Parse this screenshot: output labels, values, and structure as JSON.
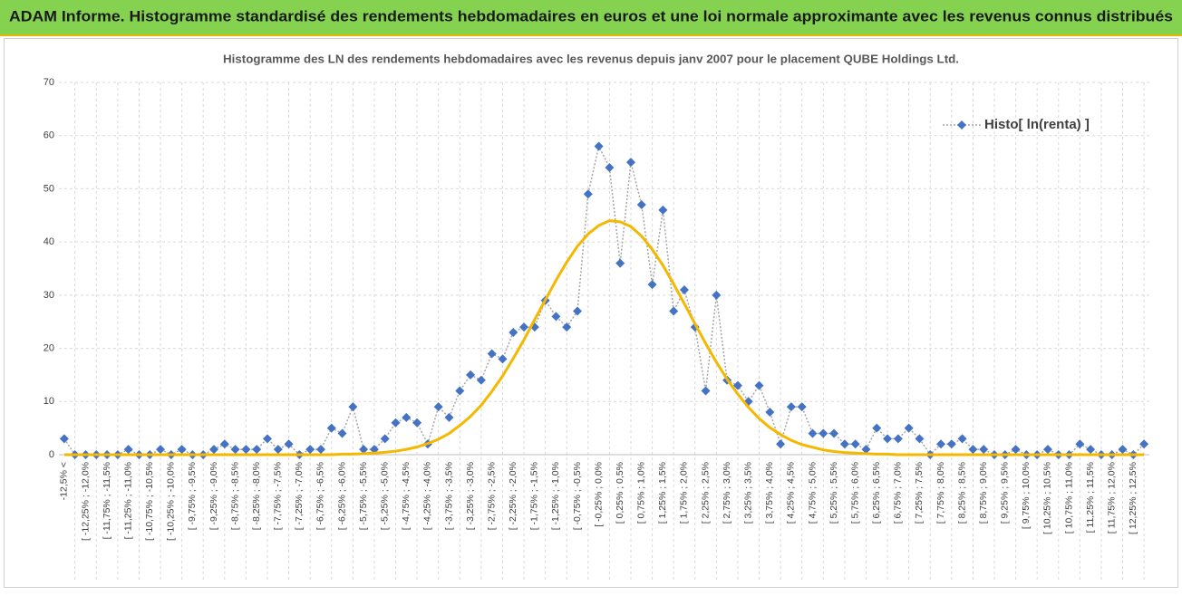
{
  "header": {
    "title": "ADAM Informe. Histogramme standardisé des rendements hebdomadaires en euros et une loi normale approximante avec les revenus connus distribués"
  },
  "chart_data": {
    "type": "line",
    "title": "Histogramme des LN des rendements hebdomadaires avec les revenus depuis janv 2007 pour le placement QUBE Holdings Ltd.",
    "categories": [
      "-12,5% <",
      null,
      "[ -12,25% ; -12,0%",
      null,
      "[ -11,75% ; -11,5%",
      null,
      "[ -11,25% ; -11,0%",
      null,
      "[ -10,75% ; -10,5%",
      null,
      "[ -10,25% ; -10,0%",
      null,
      "[ -9,75% ; -9,5%",
      null,
      "[ -9,25% ; -9,0%",
      null,
      "[ -8,75% ; -8,5%",
      null,
      "[ -8,25% ; -8,0%",
      null,
      "[ -7,75% ; -7,5%",
      null,
      "[ -7,25% ; -7,0%",
      null,
      "[ -6,75% ; -6,5%",
      null,
      "[ -6,25% ; -6,0%",
      null,
      "[ -5,75% ; -5,5%",
      null,
      "[ -5,25% ; -5,0%",
      null,
      "[ -4,75% ; -4,5%",
      null,
      "[ -4,25% ; -4,0%",
      null,
      "[ -3,75% ; -3,5%",
      null,
      "[ -3,25% ; -3,0%",
      null,
      "[ -2,75% ; -2,5%",
      null,
      "[ -2,25% ; -2,0%",
      null,
      "[ -1,75% ; -1,5%",
      null,
      "[ -1,25% ; -1,0%",
      null,
      "[ -0,75% ; -0,5%",
      null,
      "[ -0,25% ; 0,0%",
      null,
      "[ 0,25% ; 0,5%",
      null,
      "[ 0,75% ; 1,0%",
      null,
      "[ 1,25% ; 1,5%",
      null,
      "[ 1,75% ; 2,0%",
      null,
      "[ 2,25% ; 2,5%",
      null,
      "[ 2,75% ; 3,0%",
      null,
      "[ 3,25% ; 3,5%",
      null,
      "[ 3,75% ; 4,0%",
      null,
      "[ 4,25% ; 4,5%",
      null,
      "[ 4,75% ; 5,0%",
      null,
      "[ 5,25% ; 5,5%",
      null,
      "[ 5,75% ; 6,0%",
      null,
      "[ 6,25% ; 6,5%",
      null,
      "[ 6,75% ; 7,0%",
      null,
      "[ 7,25% ; 7,5%",
      null,
      "[ 7,75% ; 8,0%",
      null,
      "[ 8,25% ; 8,5%",
      null,
      "[ 8,75% ; 9,0%",
      null,
      "[ 9,25% ; 9,5%",
      null,
      "[ 9,75% ; 10,0%",
      null,
      "[ 10,25% ; 10,5%",
      null,
      "[ 10,75% ; 11,0%",
      null,
      "[ 11,25% ; 11,5%",
      null,
      "[ 11,75% ; 12,0%",
      null,
      "[ 12,25% ; 12,5%",
      null
    ],
    "series": [
      {
        "name": "Histo[ ln(renta) ]",
        "color": "#4472c4",
        "line_color": "#a6a6a6",
        "line_style": "dotted",
        "marker": "diamond",
        "values": [
          3,
          0,
          0,
          0,
          0,
          0,
          1,
          0,
          0,
          1,
          0,
          1,
          0,
          0,
          1,
          2,
          1,
          1,
          1,
          3,
          1,
          2,
          0,
          1,
          1,
          5,
          4,
          9,
          1,
          1,
          3,
          6,
          7,
          6,
          2,
          9,
          7,
          12,
          15,
          14,
          19,
          18,
          23,
          24,
          24,
          29,
          26,
          24,
          27,
          49,
          58,
          54,
          36,
          55,
          47,
          32,
          46,
          27,
          31,
          24,
          12,
          30,
          14,
          13,
          10,
          13,
          8,
          2,
          9,
          9,
          4,
          4,
          4,
          2,
          2,
          1,
          5,
          3,
          3,
          5,
          3,
          0,
          2,
          2,
          3,
          1,
          1,
          0,
          0,
          1,
          0,
          0,
          1,
          0,
          0,
          2,
          1,
          0,
          0,
          1,
          0,
          2
        ]
      },
      {
        "color": "#f5b800",
        "line_style": "solid",
        "marker": "none",
        "values": [
          0,
          0,
          0,
          0,
          0,
          0,
          0,
          0,
          0,
          0,
          0,
          0,
          0,
          0,
          0,
          0,
          0,
          0,
          0,
          0,
          0,
          0,
          0,
          0,
          0,
          0,
          0.1,
          0.1,
          0.2,
          0.3,
          0.44,
          0.67,
          1.0,
          1.45,
          2.1,
          2.9,
          4.0,
          5.5,
          7.2,
          9.3,
          11.9,
          14.8,
          18.1,
          21.6,
          25.4,
          29.1,
          32.8,
          36.2,
          39.2,
          41.5,
          43.1,
          44,
          43.8,
          42.9,
          41.1,
          38.6,
          35.6,
          32.1,
          28.4,
          24.6,
          20.9,
          17.4,
          14.2,
          11.4,
          8.9,
          6.8,
          5.1,
          3.8,
          2.7,
          1.9,
          1.4,
          0.9,
          0.6,
          0.4,
          0.3,
          0.2,
          0.1,
          0.1,
          0,
          0,
          0,
          0,
          0,
          0,
          0,
          0,
          0,
          0,
          0,
          0,
          0,
          0,
          0,
          0,
          0,
          0,
          0,
          0,
          0,
          0,
          0,
          0
        ]
      }
    ],
    "ylim": [
      0,
      70
    ],
    "yticks": [
      0,
      10,
      20,
      30,
      40,
      50,
      60,
      70
    ],
    "grid": true,
    "legend": "top-right"
  }
}
